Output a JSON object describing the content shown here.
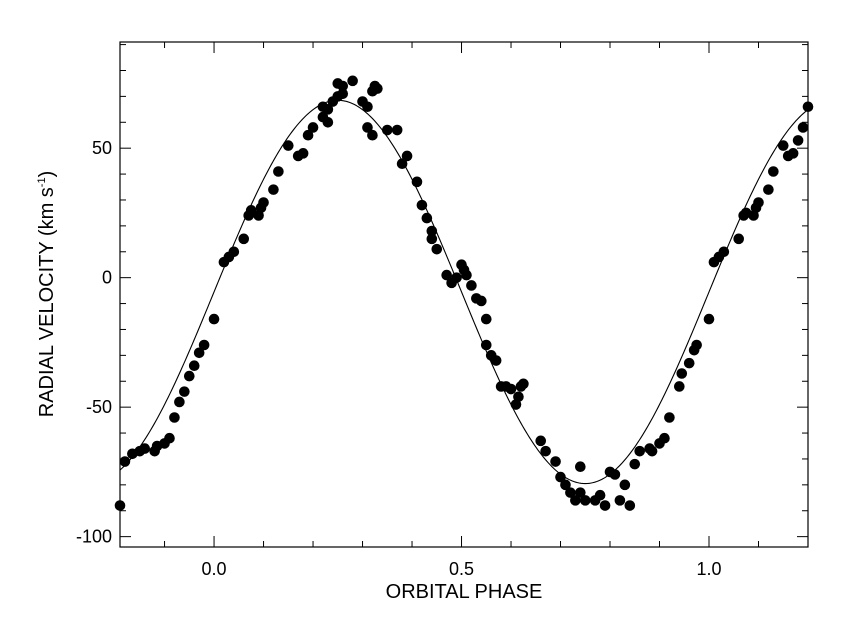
{
  "chart_data": {
    "type": "scatter",
    "title": "",
    "xlabel": "ORBITAL PHASE",
    "ylabel": {
      "main": "RADIAL VELOCITY (km s",
      "superscript": "-1",
      "close": ")"
    },
    "xlim": [
      -0.19,
      1.2
    ],
    "ylim": [
      -104,
      91
    ],
    "x_ticks": [
      {
        "value": 0.0,
        "label": "0.0"
      },
      {
        "value": 0.5,
        "label": "0.5"
      },
      {
        "value": 1.0,
        "label": "1.0"
      }
    ],
    "y_ticks": [
      {
        "value": 50,
        "label": "50"
      },
      {
        "value": 0,
        "label": "0"
      },
      {
        "value": -50,
        "label": "-50"
      },
      {
        "value": -100,
        "label": "-100"
      }
    ],
    "x_minor_step": 0.1,
    "y_minor_step": 10,
    "grid": false,
    "legend": "none",
    "fit_curve": {
      "model": "sinusoid",
      "offset": -5.5,
      "amplitude": 74,
      "phase_shift": 0.0,
      "x_range": [
        -0.19,
        1.2
      ]
    },
    "series": [
      {
        "points": [
          [
            -0.19,
            -88
          ],
          [
            -0.18,
            -71
          ],
          [
            -0.165,
            -68
          ],
          [
            -0.15,
            -67
          ],
          [
            -0.14,
            -66
          ],
          [
            -0.12,
            -67
          ],
          [
            -0.115,
            -65
          ],
          [
            -0.1,
            -64
          ],
          [
            -0.09,
            -62
          ],
          [
            -0.08,
            -54
          ],
          [
            -0.07,
            -48
          ],
          [
            -0.06,
            -44
          ],
          [
            -0.05,
            -38
          ],
          [
            -0.04,
            -34
          ],
          [
            -0.03,
            -29
          ],
          [
            -0.02,
            -26
          ],
          [
            0.0,
            -16
          ],
          [
            0.02,
            6
          ],
          [
            0.03,
            8
          ],
          [
            0.04,
            10
          ],
          [
            0.06,
            15
          ],
          [
            0.07,
            24
          ],
          [
            0.075,
            26
          ],
          [
            0.09,
            24
          ],
          [
            0.095,
            27
          ],
          [
            0.1,
            29
          ],
          [
            0.12,
            34
          ],
          [
            0.13,
            41
          ],
          [
            0.15,
            51
          ],
          [
            0.17,
            47
          ],
          [
            0.18,
            48
          ],
          [
            0.19,
            55
          ],
          [
            0.2,
            58
          ],
          [
            0.22,
            62
          ],
          [
            0.23,
            65
          ],
          [
            0.24,
            68
          ],
          [
            0.25,
            70
          ],
          [
            0.26,
            71
          ],
          [
            0.22,
            66
          ],
          [
            0.23,
            60
          ],
          [
            0.25,
            75
          ],
          [
            0.26,
            74
          ],
          [
            0.28,
            76
          ],
          [
            0.3,
            68
          ],
          [
            0.31,
            66
          ],
          [
            0.31,
            58
          ],
          [
            0.32,
            55
          ],
          [
            0.32,
            72
          ],
          [
            0.325,
            74
          ],
          [
            0.33,
            73
          ],
          [
            0.35,
            57
          ],
          [
            0.37,
            57
          ],
          [
            0.38,
            44
          ],
          [
            0.39,
            47
          ],
          [
            0.41,
            37
          ],
          [
            0.42,
            28
          ],
          [
            0.43,
            23
          ],
          [
            0.44,
            18
          ],
          [
            0.44,
            15
          ],
          [
            0.45,
            11
          ],
          [
            0.47,
            1
          ],
          [
            0.48,
            -2
          ],
          [
            0.49,
            0
          ],
          [
            0.5,
            5
          ],
          [
            0.505,
            3
          ],
          [
            0.51,
            1
          ],
          [
            0.52,
            -3
          ],
          [
            0.53,
            -8
          ],
          [
            0.54,
            -9
          ],
          [
            0.55,
            -16
          ],
          [
            0.55,
            -26
          ],
          [
            0.56,
            -30
          ],
          [
            0.57,
            -32
          ],
          [
            0.58,
            -42
          ],
          [
            0.59,
            -42
          ],
          [
            0.6,
            -43
          ],
          [
            0.61,
            -49
          ],
          [
            0.615,
            -46
          ],
          [
            0.62,
            -42
          ],
          [
            0.625,
            -41
          ],
          [
            0.66,
            -63
          ],
          [
            0.67,
            -67
          ],
          [
            0.69,
            -71
          ],
          [
            0.7,
            -77
          ],
          [
            0.71,
            -80
          ],
          [
            0.72,
            -83
          ],
          [
            0.73,
            -86
          ],
          [
            0.74,
            -73
          ],
          [
            0.74,
            -83
          ],
          [
            0.75,
            -86
          ],
          [
            0.77,
            -86
          ],
          [
            0.78,
            -84
          ],
          [
            0.79,
            -88
          ],
          [
            0.8,
            -75
          ],
          [
            0.81,
            -76
          ],
          [
            0.82,
            -86
          ],
          [
            0.83,
            -80
          ],
          [
            0.84,
            -88
          ],
          [
            0.85,
            -72
          ],
          [
            0.86,
            -67
          ],
          [
            0.88,
            -66
          ],
          [
            0.885,
            -67
          ],
          [
            0.9,
            -64
          ],
          [
            0.91,
            -62
          ],
          [
            0.92,
            -54
          ],
          [
            0.94,
            -42
          ],
          [
            0.945,
            -37
          ],
          [
            0.96,
            -33
          ],
          [
            0.97,
            -28
          ],
          [
            0.975,
            -26
          ],
          [
            1.0,
            -16
          ],
          [
            1.01,
            6
          ],
          [
            1.02,
            8
          ],
          [
            1.03,
            10
          ],
          [
            1.06,
            15
          ],
          [
            1.07,
            24
          ],
          [
            1.075,
            25
          ],
          [
            1.09,
            24
          ],
          [
            1.095,
            27
          ],
          [
            1.1,
            29
          ],
          [
            1.12,
            34
          ],
          [
            1.13,
            41
          ],
          [
            1.15,
            51
          ],
          [
            1.16,
            47
          ],
          [
            1.17,
            48
          ],
          [
            1.18,
            53
          ],
          [
            1.19,
            58
          ],
          [
            1.2,
            66
          ]
        ]
      }
    ]
  }
}
